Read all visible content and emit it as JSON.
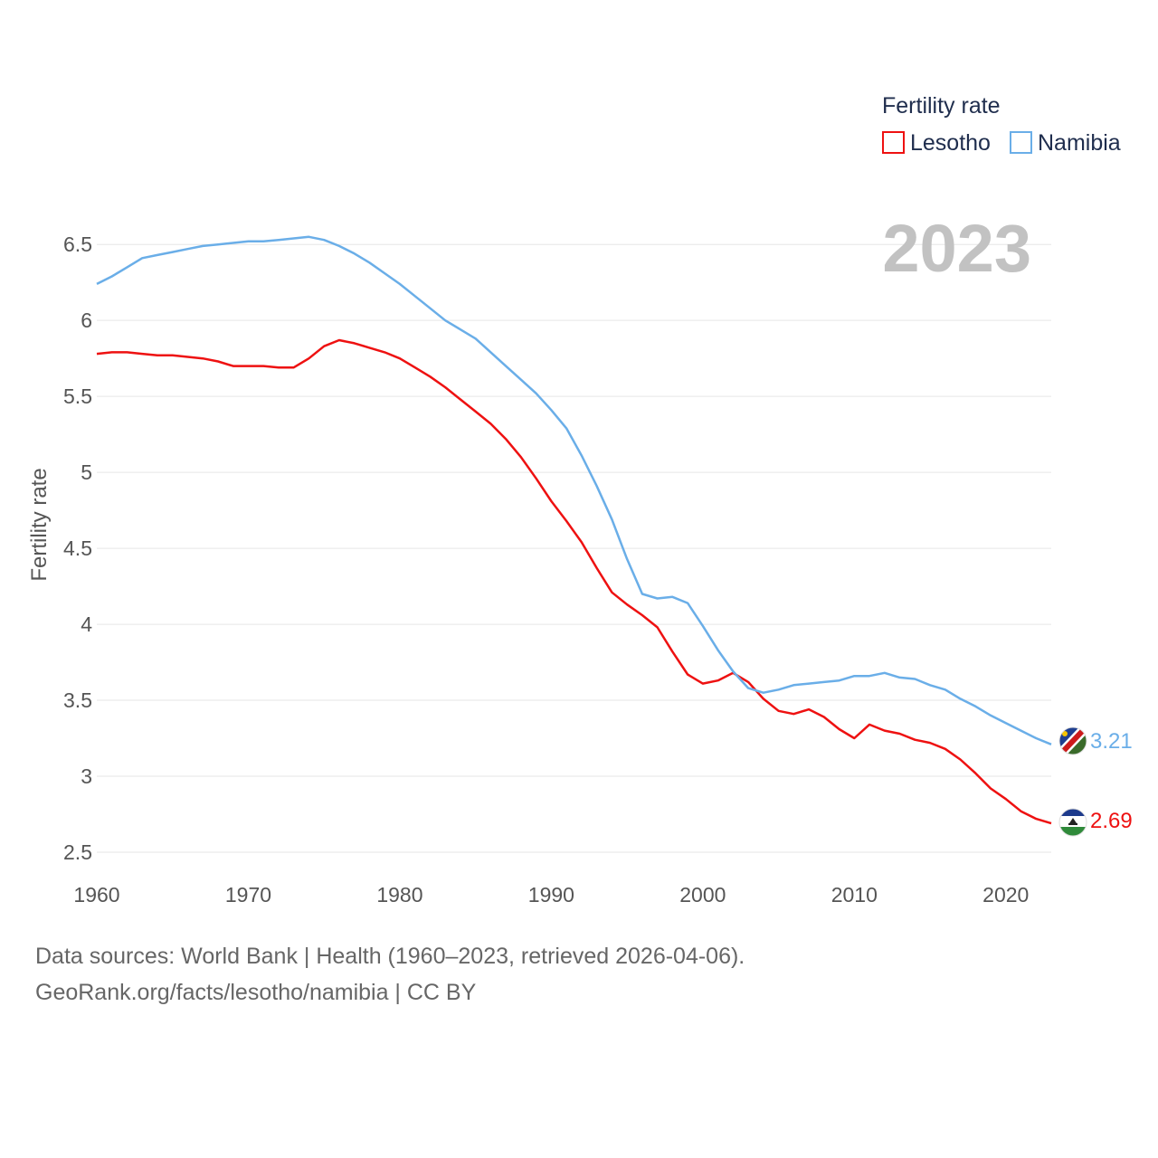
{
  "chart_data": {
    "type": "line",
    "title": "",
    "ylabel": "Fertility rate",
    "xlabel": "",
    "year_display": "2023",
    "xlim": [
      1960,
      2023
    ],
    "ylim": [
      2.5,
      6.65
    ],
    "x_ticks": [
      1960,
      1970,
      1980,
      1990,
      2000,
      2010,
      2020
    ],
    "y_ticks": [
      2.5,
      3,
      3.5,
      4,
      4.5,
      5,
      5.5,
      6,
      6.5
    ],
    "y_tick_labels": [
      "2.5",
      "3",
      "3.5",
      "4",
      "4.5",
      "5",
      "5.5",
      "6",
      "6.5"
    ],
    "legend": {
      "title": "Fertility rate",
      "position": "top-right"
    },
    "x": [
      1960,
      1961,
      1962,
      1963,
      1964,
      1965,
      1966,
      1967,
      1968,
      1969,
      1970,
      1971,
      1972,
      1973,
      1974,
      1975,
      1976,
      1977,
      1978,
      1979,
      1980,
      1981,
      1982,
      1983,
      1984,
      1985,
      1986,
      1987,
      1988,
      1989,
      1990,
      1991,
      1992,
      1993,
      1994,
      1995,
      1996,
      1997,
      1998,
      1999,
      2000,
      2001,
      2002,
      2003,
      2004,
      2005,
      2006,
      2007,
      2008,
      2009,
      2010,
      2011,
      2012,
      2013,
      2014,
      2015,
      2016,
      2017,
      2018,
      2019,
      2020,
      2021,
      2022,
      2023
    ],
    "series": [
      {
        "name": "Lesotho",
        "color": "#ee1111",
        "end_label": "2.69",
        "flag": "lesotho-flag",
        "values": [
          5.78,
          5.79,
          5.79,
          5.78,
          5.77,
          5.77,
          5.76,
          5.75,
          5.73,
          5.7,
          5.7,
          5.7,
          5.69,
          5.69,
          5.75,
          5.83,
          5.87,
          5.85,
          5.82,
          5.79,
          5.75,
          5.69,
          5.63,
          5.56,
          5.48,
          5.4,
          5.32,
          5.22,
          5.1,
          4.96,
          4.81,
          4.68,
          4.54,
          4.37,
          4.21,
          4.13,
          4.06,
          3.98,
          3.82,
          3.67,
          3.61,
          3.63,
          3.68,
          3.62,
          3.51,
          3.43,
          3.41,
          3.44,
          3.39,
          3.31,
          3.25,
          3.34,
          3.3,
          3.28,
          3.24,
          3.22,
          3.18,
          3.11,
          3.02,
          2.92,
          2.85,
          2.77,
          2.72,
          2.69
        ]
      },
      {
        "name": "Namibia",
        "color": "#6aaee8",
        "end_label": "3.21",
        "flag": "namibia-flag",
        "values": [
          6.24,
          6.29,
          6.35,
          6.41,
          6.43,
          6.45,
          6.47,
          6.49,
          6.5,
          6.51,
          6.52,
          6.52,
          6.53,
          6.54,
          6.55,
          6.53,
          6.49,
          6.44,
          6.38,
          6.31,
          6.24,
          6.16,
          6.08,
          6.0,
          5.94,
          5.88,
          5.79,
          5.7,
          5.61,
          5.52,
          5.41,
          5.29,
          5.11,
          4.91,
          4.69,
          4.43,
          4.2,
          4.17,
          4.18,
          4.14,
          3.99,
          3.83,
          3.69,
          3.58,
          3.55,
          3.57,
          3.6,
          3.61,
          3.62,
          3.63,
          3.66,
          3.66,
          3.68,
          3.65,
          3.64,
          3.6,
          3.57,
          3.51,
          3.46,
          3.4,
          3.35,
          3.3,
          3.25,
          3.21
        ]
      }
    ]
  },
  "footer": {
    "line1": "Data sources: World Bank | Health (1960–2023, retrieved 2026-04-06).",
    "line2": "GeoRank.org/facts/lesotho/namibia | CC BY"
  }
}
